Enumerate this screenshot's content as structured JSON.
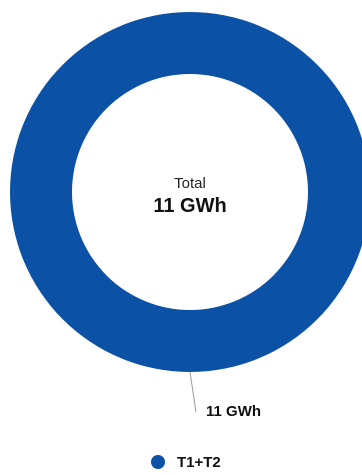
{
  "chart_data": {
    "type": "pie",
    "donut": true,
    "center_label": "Total",
    "center_value": "11 GWh",
    "slices": [
      {
        "name": "T1+T2",
        "value": 11,
        "unit": "GWh",
        "label": "11 GWh",
        "color": "#0b51a5"
      }
    ],
    "legend": {
      "placement": "bottom",
      "entries": [
        "T1+T2"
      ]
    }
  }
}
